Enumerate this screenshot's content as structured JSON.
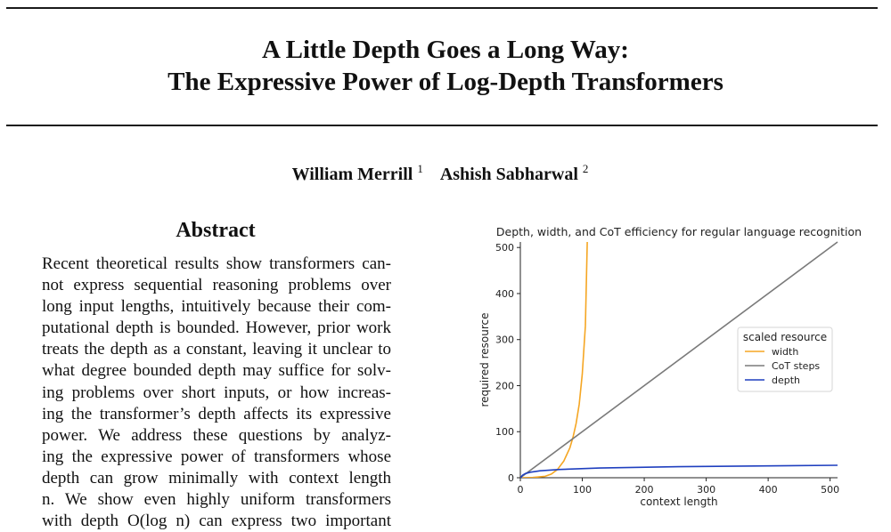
{
  "paper": {
    "title_line1": "A Little Depth Goes a Long Way:",
    "title_line2": "The Expressive Power of Log-Depth Transformers",
    "authors": [
      {
        "name": "William Merrill",
        "affiliation": "1"
      },
      {
        "name": "Ashish Sabharwal",
        "affiliation": "2"
      }
    ]
  },
  "abstract": {
    "heading": "Abstract",
    "lines": [
      "Recent theoretical results show transformers can-",
      "not express sequential reasoning problems over",
      "long input lengths, intuitively because their com-",
      "putational depth is bounded. However, prior work",
      "treats the depth as a constant, leaving it unclear to",
      "what degree bounded depth may suffice for solv-",
      "ing problems over short inputs, or how increas-",
      "ing the transformer’s depth affects its expressive",
      "power.  We address these questions by analyz-",
      "ing the expressive power of transformers whose",
      "depth can grow minimally with context length",
      "n.  We show even highly uniform transformers",
      "with depth O(log n) can express two important"
    ]
  },
  "chart_data": {
    "type": "line",
    "title": "Depth, width, and CoT efficiency for regular language recognition",
    "xlabel": "context length",
    "ylabel": "required resource",
    "xlim": [
      0,
      512
    ],
    "ylim": [
      0,
      512
    ],
    "xticks": [
      0,
      100,
      200,
      300,
      400,
      500
    ],
    "yticks": [
      0,
      100,
      200,
      300,
      400,
      500
    ],
    "grid": false,
    "legend": {
      "title": "scaled resource",
      "placement": "right"
    },
    "series": [
      {
        "name": "width",
        "color": "#f5a623",
        "x": [
          0,
          20,
          40,
          50,
          60,
          70,
          80,
          85,
          90,
          95,
          100,
          105,
          108
        ],
        "y": [
          0,
          0.5,
          3,
          8,
          18,
          36,
          65,
          88,
          118,
          160,
          225,
          330,
          512
        ]
      },
      {
        "name": "CoT steps",
        "color": "#7a7a7a",
        "x": [
          0,
          512
        ],
        "y": [
          0,
          512
        ]
      },
      {
        "name": "depth",
        "color": "#1f3fbf",
        "x": [
          1,
          2,
          4,
          8,
          16,
          32,
          64,
          128,
          256,
          512
        ],
        "y": [
          0,
          3,
          6,
          9,
          12,
          15,
          18,
          21,
          24,
          27
        ]
      }
    ]
  }
}
